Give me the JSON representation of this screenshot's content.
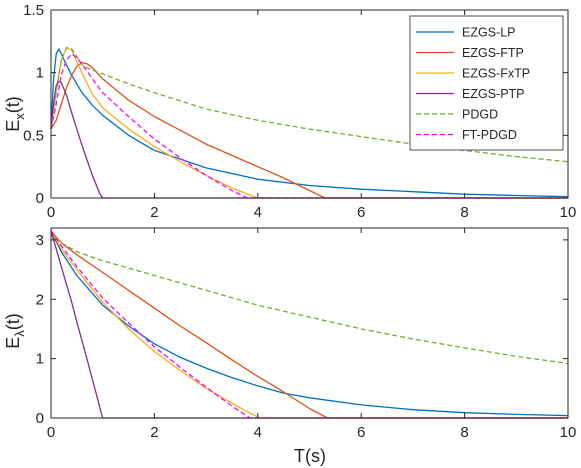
{
  "chart_data": [
    {
      "type": "line",
      "panel": "top",
      "ylabel": "E_x(t)",
      "ylabel_main": "E",
      "ylabel_sub": "x",
      "ylabel_tail": "(t)",
      "xlabel": "",
      "xlim": [
        0,
        10
      ],
      "ylim": [
        0,
        1.5
      ],
      "xticks": [
        "0",
        "2",
        "4",
        "6",
        "8",
        "10"
      ],
      "xtick_values": [
        0,
        2,
        4,
        6,
        8,
        10
      ],
      "yticks": [
        "0",
        "0.5",
        "1",
        "1.5"
      ],
      "ytick_values": [
        0,
        0.5,
        1,
        1.5
      ],
      "grid": false,
      "legend": "top-right",
      "series": [
        {
          "name": "EZGS-LP",
          "color": "#0072BD",
          "dash": "solid",
          "x": [
            0,
            0.05,
            0.1,
            0.15,
            0.2,
            0.3,
            0.4,
            0.6,
            0.8,
            1.0,
            1.5,
            2.0,
            3.0,
            4.0,
            5.0,
            6.0,
            7.0,
            8.0,
            9.0,
            10.0
          ],
          "y": [
            0.55,
            0.95,
            1.15,
            1.19,
            1.15,
            1.06,
            0.98,
            0.84,
            0.74,
            0.66,
            0.5,
            0.38,
            0.24,
            0.15,
            0.1,
            0.07,
            0.05,
            0.03,
            0.02,
            0.01
          ]
        },
        {
          "name": "EZGS-FTP",
          "color": "#D95319",
          "dash": "solid",
          "x": [
            0,
            0.1,
            0.2,
            0.3,
            0.4,
            0.5,
            0.6,
            0.7,
            0.8,
            1.0,
            1.5,
            2.0,
            2.5,
            3.0,
            3.5,
            4.0,
            4.5,
            5.0,
            5.3,
            6.0,
            10.0
          ],
          "y": [
            0.55,
            0.62,
            0.75,
            0.88,
            0.98,
            1.05,
            1.08,
            1.07,
            1.04,
            0.95,
            0.78,
            0.65,
            0.54,
            0.43,
            0.34,
            0.25,
            0.16,
            0.06,
            0.0,
            0.0,
            0.0
          ]
        },
        {
          "name": "EZGS-FxTP",
          "color": "#EDB120",
          "dash": "solid",
          "x": [
            0,
            0.1,
            0.2,
            0.3,
            0.4,
            0.5,
            0.6,
            0.8,
            1.0,
            1.5,
            2.0,
            2.5,
            3.0,
            3.5,
            4.0,
            4.5,
            10.0
          ],
          "y": [
            0.55,
            0.85,
            1.1,
            1.2,
            1.18,
            1.09,
            1.0,
            0.83,
            0.72,
            0.55,
            0.41,
            0.29,
            0.18,
            0.08,
            0.0,
            0.0,
            0.0
          ]
        },
        {
          "name": "EZGS-PTP",
          "color": "#7E2F8E",
          "dash": "solid",
          "x": [
            0,
            0.05,
            0.1,
            0.15,
            0.2,
            0.3,
            0.4,
            0.5,
            0.6,
            0.7,
            0.8,
            0.9,
            0.95,
            1.0,
            1.5,
            10.0
          ],
          "y": [
            0.55,
            0.75,
            0.9,
            0.93,
            0.92,
            0.82,
            0.68,
            0.55,
            0.42,
            0.3,
            0.18,
            0.08,
            0.03,
            0.0,
            0.0,
            0.0
          ]
        },
        {
          "name": "PDGD",
          "color": "#77AC30",
          "dash": "dashed",
          "x": [
            0,
            0.1,
            0.2,
            0.3,
            0.4,
            0.5,
            0.6,
            0.8,
            1.0,
            1.5,
            2.0,
            3.0,
            4.0,
            5.0,
            6.0,
            7.0,
            8.0,
            9.0,
            10.0
          ],
          "y": [
            0.55,
            0.85,
            1.1,
            1.2,
            1.19,
            1.13,
            1.06,
            1.02,
            0.99,
            0.91,
            0.84,
            0.71,
            0.62,
            0.55,
            0.49,
            0.43,
            0.38,
            0.33,
            0.29
          ]
        },
        {
          "name": "FT-PDGD",
          "color": "#FF00FF",
          "dash": "dashed",
          "x": [
            0,
            0.1,
            0.2,
            0.3,
            0.4,
            0.5,
            0.6,
            0.8,
            1.0,
            1.5,
            2.0,
            2.5,
            3.0,
            3.5,
            3.8,
            4.0,
            10.0
          ],
          "y": [
            0.55,
            0.75,
            0.98,
            1.1,
            1.15,
            1.12,
            1.07,
            0.95,
            0.84,
            0.65,
            0.47,
            0.32,
            0.18,
            0.06,
            0.0,
            0.0,
            0.0
          ]
        }
      ]
    },
    {
      "type": "line",
      "panel": "bottom",
      "ylabel": "E_λ(t)",
      "ylabel_main": "E",
      "ylabel_sub": "λ",
      "ylabel_tail": "(t)",
      "xlabel": "T(s)",
      "xlim": [
        0,
        10
      ],
      "ylim": [
        0,
        3.2
      ],
      "xticks": [
        "0",
        "2",
        "4",
        "6",
        "8",
        "10"
      ],
      "xtick_values": [
        0,
        2,
        4,
        6,
        8,
        10
      ],
      "yticks": [
        "0",
        "1",
        "2",
        "3"
      ],
      "ytick_values": [
        0,
        1,
        2,
        3
      ],
      "grid": false,
      "series": [
        {
          "name": "EZGS-LP",
          "color": "#0072BD",
          "dash": "solid",
          "x": [
            0,
            0.2,
            0.5,
            1.0,
            1.5,
            2.0,
            2.5,
            3.0,
            3.5,
            4.0,
            4.5,
            5.0,
            6.0,
            7.0,
            8.0,
            9.0,
            10.0
          ],
          "y": [
            3.15,
            2.8,
            2.4,
            1.9,
            1.55,
            1.25,
            1.02,
            0.84,
            0.68,
            0.54,
            0.42,
            0.34,
            0.22,
            0.14,
            0.09,
            0.06,
            0.04
          ]
        },
        {
          "name": "EZGS-FTP",
          "color": "#D95319",
          "dash": "solid",
          "x": [
            0,
            0.2,
            0.5,
            1.0,
            1.5,
            2.0,
            2.5,
            3.0,
            3.5,
            4.0,
            4.5,
            5.0,
            5.35,
            6.0,
            10.0
          ],
          "y": [
            3.15,
            2.95,
            2.75,
            2.45,
            2.15,
            1.85,
            1.55,
            1.27,
            0.98,
            0.7,
            0.44,
            0.16,
            0.0,
            0.0,
            0.0
          ]
        },
        {
          "name": "EZGS-FxTP",
          "color": "#EDB120",
          "dash": "solid",
          "x": [
            0,
            0.2,
            0.5,
            1.0,
            1.5,
            2.0,
            2.5,
            3.0,
            3.5,
            3.9,
            4.05,
            5.0,
            10.0
          ],
          "y": [
            3.15,
            2.85,
            2.5,
            1.95,
            1.5,
            1.12,
            0.8,
            0.5,
            0.25,
            0.06,
            0.0,
            0.0,
            0.0
          ]
        },
        {
          "name": "EZGS-PTP",
          "color": "#7E2F8E",
          "dash": "solid",
          "x": [
            0,
            0.1,
            0.2,
            0.3,
            0.4,
            0.5,
            0.6,
            0.7,
            0.8,
            0.9,
            0.95,
            1.0,
            1.5,
            10.0
          ],
          "y": [
            3.15,
            2.85,
            2.55,
            2.25,
            1.95,
            1.62,
            1.3,
            0.98,
            0.65,
            0.33,
            0.15,
            0.0,
            0.0,
            0.0
          ]
        },
        {
          "name": "PDGD",
          "color": "#77AC30",
          "dash": "dashed",
          "x": [
            0,
            0.2,
            0.5,
            1.0,
            2.0,
            3.0,
            4.0,
            5.0,
            6.0,
            7.0,
            8.0,
            9.0,
            10.0
          ],
          "y": [
            3.15,
            2.95,
            2.8,
            2.65,
            2.4,
            2.15,
            1.9,
            1.7,
            1.5,
            1.33,
            1.18,
            1.04,
            0.92
          ]
        },
        {
          "name": "FT-PDGD",
          "color": "#FF00FF",
          "dash": "dashed",
          "x": [
            0,
            0.2,
            0.5,
            1.0,
            1.5,
            2.0,
            2.5,
            3.0,
            3.5,
            3.85,
            4.0,
            10.0
          ],
          "y": [
            3.15,
            2.9,
            2.55,
            2.02,
            1.6,
            1.2,
            0.85,
            0.52,
            0.2,
            0.0,
            0.0,
            0.0
          ]
        }
      ]
    }
  ]
}
